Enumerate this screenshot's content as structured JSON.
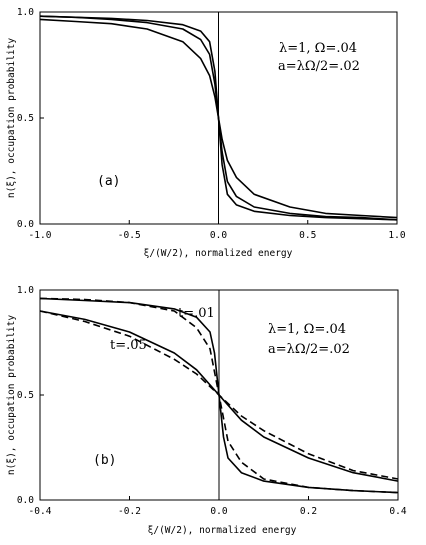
{
  "chart_data": [
    {
      "type": "line",
      "panel_label": "(a)",
      "xlabel": "ξ/(W/2), normalized energy",
      "ylabel": "n(ξ), occupation probability",
      "xlim": [
        -1.0,
        1.0
      ],
      "ylim": [
        0.0,
        1.0
      ],
      "xticks": [
        "-1.0",
        "-0.5",
        "0.0",
        "0.5",
        "1.0"
      ],
      "yticks": [
        "0.0",
        "0.5",
        "1.0"
      ],
      "annotations": [
        "λ=1, Ω=.04",
        "a=λΩ/2=.02"
      ],
      "vertical_line_x": 0.0,
      "series": [
        {
          "x": [
            -1.0,
            -0.8,
            -0.6,
            -0.4,
            -0.2,
            -0.1,
            -0.05,
            -0.02,
            0.0,
            0.02,
            0.05,
            0.1,
            0.2,
            0.4,
            0.6,
            0.8,
            1.0
          ],
          "y": [
            0.98,
            0.975,
            0.97,
            0.96,
            0.94,
            0.91,
            0.86,
            0.72,
            0.5,
            0.28,
            0.14,
            0.09,
            0.06,
            0.04,
            0.03,
            0.025,
            0.02
          ]
        },
        {
          "x": [
            -1.0,
            -0.8,
            -0.6,
            -0.4,
            -0.2,
            -0.1,
            -0.05,
            -0.02,
            0.0,
            0.02,
            0.05,
            0.1,
            0.2,
            0.4,
            0.6,
            0.8,
            1.0
          ],
          "y": [
            0.98,
            0.975,
            0.965,
            0.95,
            0.92,
            0.87,
            0.8,
            0.66,
            0.5,
            0.34,
            0.2,
            0.13,
            0.08,
            0.05,
            0.035,
            0.03,
            0.02
          ]
        },
        {
          "x": [
            -1.0,
            -0.8,
            -0.6,
            -0.4,
            -0.2,
            -0.1,
            -0.05,
            -0.02,
            0.0,
            0.02,
            0.05,
            0.1,
            0.2,
            0.4,
            0.6,
            0.8,
            1.0
          ],
          "y": [
            0.965,
            0.955,
            0.945,
            0.92,
            0.86,
            0.78,
            0.7,
            0.6,
            0.5,
            0.4,
            0.3,
            0.22,
            0.14,
            0.08,
            0.05,
            0.04,
            0.03
          ]
        }
      ]
    },
    {
      "type": "line",
      "panel_label": "(b)",
      "xlabel": "ξ/(W/2), normalized energy",
      "ylabel": "n(ξ), occupation probability",
      "xlim": [
        -0.4,
        0.4
      ],
      "ylim": [
        0.0,
        1.0
      ],
      "xticks": [
        "-0.4",
        "-0.2",
        "0.0",
        "0.2",
        "0.4"
      ],
      "yticks": [
        "0.0",
        "0.5",
        "1.0"
      ],
      "annotations": [
        "λ=1, Ω=.04",
        "a=λΩ/2=.02"
      ],
      "curve_labels": [
        "t=.01",
        "t=.05"
      ],
      "vertical_line_x": 0.0,
      "series": [
        {
          "style": "solid",
          "x": [
            -0.4,
            -0.3,
            -0.2,
            -0.1,
            -0.05,
            -0.02,
            -0.01,
            0.0,
            0.01,
            0.02,
            0.05,
            0.1,
            0.2,
            0.3,
            0.4
          ],
          "y": [
            0.96,
            0.95,
            0.94,
            0.91,
            0.87,
            0.8,
            0.7,
            0.5,
            0.3,
            0.2,
            0.13,
            0.09,
            0.06,
            0.045,
            0.035
          ]
        },
        {
          "style": "dashed",
          "x": [
            -0.4,
            -0.3,
            -0.2,
            -0.1,
            -0.05,
            -0.02,
            0.0,
            0.02,
            0.05,
            0.1,
            0.2,
            0.3,
            0.4
          ],
          "y": [
            0.96,
            0.955,
            0.94,
            0.9,
            0.82,
            0.72,
            0.5,
            0.28,
            0.18,
            0.1,
            0.06,
            0.045,
            0.035
          ]
        },
        {
          "style": "solid",
          "x": [
            -0.4,
            -0.3,
            -0.2,
            -0.1,
            -0.05,
            0.0,
            0.05,
            0.1,
            0.2,
            0.3,
            0.4
          ],
          "y": [
            0.9,
            0.86,
            0.8,
            0.7,
            0.62,
            0.5,
            0.38,
            0.3,
            0.2,
            0.13,
            0.09
          ]
        },
        {
          "style": "dashed",
          "x": [
            -0.4,
            -0.3,
            -0.2,
            -0.1,
            -0.05,
            0.0,
            0.05,
            0.1,
            0.2,
            0.3,
            0.4
          ],
          "y": [
            0.9,
            0.85,
            0.78,
            0.67,
            0.6,
            0.5,
            0.4,
            0.33,
            0.22,
            0.14,
            0.1
          ]
        }
      ]
    }
  ]
}
